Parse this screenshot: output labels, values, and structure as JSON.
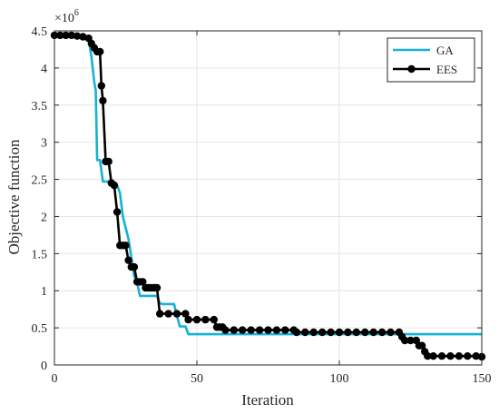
{
  "chart_data": {
    "type": "line",
    "xlabel": "Iteration",
    "ylabel": "Objective function",
    "y_exponent_base": "×10",
    "y_exponent_power": "6",
    "xlim": [
      0,
      150
    ],
    "ylim": [
      0,
      4500000
    ],
    "xticks": [
      0,
      50,
      100,
      150
    ],
    "yticks": [
      0,
      500000,
      1000000,
      1500000,
      2000000,
      2500000,
      3000000,
      3500000,
      4000000,
      4500000
    ],
    "ytick_labels": [
      "0",
      "0.5",
      "1",
      "1.5",
      "2",
      "2.5",
      "3",
      "3.5",
      "4",
      "4.5"
    ],
    "grid": true,
    "legend_position": "top-right",
    "colors": {
      "GA": "#17b0d6",
      "EES": "#000000",
      "axis": "#262626",
      "grid": "#e6e6e6"
    },
    "series": [
      {
        "name": "GA",
        "style": "step-line",
        "points": [
          [
            0,
            4430000
          ],
          [
            11,
            4430000
          ],
          [
            12,
            4380000
          ],
          [
            13,
            4150000
          ],
          [
            14,
            3800000
          ],
          [
            14.5,
            3700000
          ],
          [
            15,
            2760000
          ],
          [
            16,
            2760000
          ],
          [
            17,
            2470000
          ],
          [
            19,
            2470000
          ],
          [
            20,
            2420000
          ],
          [
            22,
            2420000
          ],
          [
            23,
            2320000
          ],
          [
            24,
            2000000
          ],
          [
            25,
            1850000
          ],
          [
            26,
            1700000
          ],
          [
            27,
            1450000
          ],
          [
            28,
            1200000
          ],
          [
            29,
            1110000
          ],
          [
            30,
            930000
          ],
          [
            36,
            930000
          ],
          [
            37,
            830000
          ],
          [
            38,
            820000
          ],
          [
            42,
            820000
          ],
          [
            43,
            660000
          ],
          [
            44,
            520000
          ],
          [
            46,
            520000
          ],
          [
            47,
            415000
          ],
          [
            150,
            415000
          ]
        ]
      },
      {
        "name": "EES",
        "style": "line-with-markers",
        "points": [
          [
            0,
            4440000
          ],
          [
            2,
            4440000
          ],
          [
            4,
            4440000
          ],
          [
            6,
            4440000
          ],
          [
            8,
            4430000
          ],
          [
            10,
            4420000
          ],
          [
            12,
            4400000
          ],
          [
            13,
            4330000
          ],
          [
            14,
            4270000
          ],
          [
            15,
            4220000
          ],
          [
            16,
            4220000
          ],
          [
            16.5,
            3760000
          ],
          [
            17,
            3560000
          ],
          [
            18,
            2740000
          ],
          [
            19,
            2740000
          ],
          [
            20,
            2450000
          ],
          [
            21,
            2420000
          ],
          [
            22,
            2060000
          ],
          [
            23,
            1610000
          ],
          [
            24,
            1610000
          ],
          [
            25,
            1610000
          ],
          [
            26,
            1410000
          ],
          [
            27,
            1320000
          ],
          [
            28,
            1320000
          ],
          [
            29,
            1120000
          ],
          [
            30,
            1120000
          ],
          [
            31,
            1120000
          ],
          [
            32,
            1040000
          ],
          [
            33,
            1040000
          ],
          [
            34,
            1040000
          ],
          [
            35,
            1040000
          ],
          [
            36,
            1040000
          ],
          [
            37,
            690000
          ],
          [
            40,
            690000
          ],
          [
            43,
            690000
          ],
          [
            46,
            690000
          ],
          [
            47,
            610000
          ],
          [
            50,
            610000
          ],
          [
            53,
            610000
          ],
          [
            56,
            610000
          ],
          [
            57,
            510000
          ],
          [
            58,
            510000
          ],
          [
            59,
            510000
          ],
          [
            60,
            470000
          ],
          [
            63,
            470000
          ],
          [
            66,
            470000
          ],
          [
            69,
            470000
          ],
          [
            72,
            470000
          ],
          [
            75,
            470000
          ],
          [
            78,
            470000
          ],
          [
            81,
            470000
          ],
          [
            84,
            470000
          ],
          [
            85,
            440000
          ],
          [
            88,
            440000
          ],
          [
            91,
            440000
          ],
          [
            94,
            440000
          ],
          [
            97,
            440000
          ],
          [
            100,
            440000
          ],
          [
            103,
            440000
          ],
          [
            106,
            440000
          ],
          [
            109,
            440000
          ],
          [
            112,
            440000
          ],
          [
            115,
            440000
          ],
          [
            118,
            440000
          ],
          [
            121,
            440000
          ],
          [
            122,
            380000
          ],
          [
            123,
            330000
          ],
          [
            125,
            330000
          ],
          [
            127,
            330000
          ],
          [
            128,
            260000
          ],
          [
            129,
            260000
          ],
          [
            130,
            180000
          ],
          [
            131,
            120000
          ],
          [
            133,
            120000
          ],
          [
            136,
            120000
          ],
          [
            139,
            120000
          ],
          [
            142,
            120000
          ],
          [
            145,
            120000
          ],
          [
            148,
            120000
          ],
          [
            150,
            110000
          ]
        ]
      }
    ]
  }
}
